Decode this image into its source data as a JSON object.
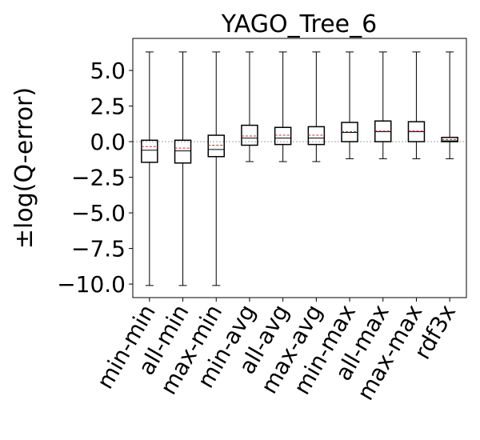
{
  "chart_data": {
    "type": "box",
    "title": "YAGO_Tree_6",
    "ylabel": "±log(Q-error)",
    "xlabel": "",
    "ylim": [
      -10.95,
      7.25
    ],
    "yticks": [
      -10.0,
      -7.5,
      -5.0,
      -2.5,
      0.0,
      2.5,
      5.0
    ],
    "ytick_labels": [
      "−10.0",
      "−7.5",
      "−5.0",
      "−2.5",
      "0.0",
      "2.5",
      "5.0"
    ],
    "grid": false,
    "reference_line": 0,
    "categories": [
      "min-min",
      "all-min",
      "max-min",
      "min-avg",
      "all-avg",
      "max-avg",
      "min-max",
      "all-max",
      "max-max",
      "rdf3x"
    ],
    "boxes": [
      {
        "whisker_low": -10.1,
        "q1": -1.45,
        "median": -0.6,
        "mean": -0.35,
        "q3": 0.1,
        "whisker_high": 6.3
      },
      {
        "whisker_low": -10.1,
        "q1": -1.5,
        "median": -0.65,
        "mean": -0.45,
        "q3": 0.1,
        "whisker_high": 6.3
      },
      {
        "whisker_low": -10.1,
        "q1": -1.05,
        "median": -0.55,
        "mean": -0.25,
        "q3": 0.45,
        "whisker_high": 6.3
      },
      {
        "whisker_low": -1.4,
        "q1": -0.25,
        "median": 0.25,
        "mean": 0.4,
        "q3": 1.15,
        "whisker_high": 6.3
      },
      {
        "whisker_low": -1.4,
        "q1": -0.2,
        "median": 0.25,
        "mean": 0.45,
        "q3": 1.0,
        "whisker_high": 6.3
      },
      {
        "whisker_low": -1.4,
        "q1": -0.2,
        "median": 0.25,
        "mean": 0.45,
        "q3": 1.05,
        "whisker_high": 6.3
      },
      {
        "whisker_low": -1.2,
        "q1": 0.0,
        "median": 0.65,
        "mean": 0.7,
        "q3": 1.35,
        "whisker_high": 6.3
      },
      {
        "whisker_low": -1.2,
        "q1": 0.0,
        "median": 0.7,
        "mean": 0.75,
        "q3": 1.45,
        "whisker_high": 6.3
      },
      {
        "whisker_low": -1.2,
        "q1": 0.0,
        "median": 0.7,
        "mean": 0.75,
        "q3": 1.4,
        "whisker_high": 6.3
      },
      {
        "whisker_low": -1.2,
        "q1": 0.0,
        "median": 0.05,
        "mean": 0.15,
        "q3": 0.3,
        "whisker_high": 6.3
      }
    ],
    "colors": {
      "box": "#000000",
      "median": "#000000",
      "mean": "#d62728",
      "reference_line": "#999999"
    }
  }
}
